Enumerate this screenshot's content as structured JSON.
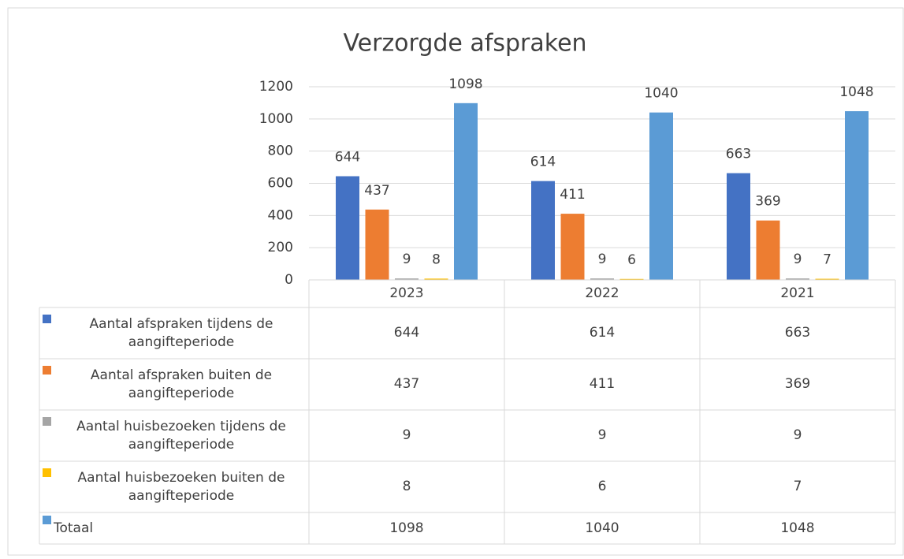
{
  "chart_data": {
    "type": "bar",
    "title": "Verzorgde afspraken",
    "categories": [
      "2023",
      "2022",
      "2021"
    ],
    "series": [
      {
        "name": "Aantal afspraken tijdens de aangifteperiode",
        "color": "#4472c4",
        "values": [
          644,
          614,
          663
        ]
      },
      {
        "name": "Aantal afspraken buiten de aangifteperiode",
        "color": "#ed7d31",
        "values": [
          437,
          411,
          369
        ]
      },
      {
        "name": "Aantal huisbezoeken tijdens de aangifteperiode",
        "color": "#a5a5a5",
        "values": [
          9,
          9,
          9
        ]
      },
      {
        "name": "Aantal huisbezoeken buiten de aangifteperiode",
        "color": "#ffc000",
        "values": [
          8,
          6,
          7
        ]
      },
      {
        "name": "Totaal",
        "color": "#5b9bd5",
        "values": [
          1098,
          1040,
          1048
        ]
      }
    ],
    "ylim": [
      0,
      1200
    ],
    "yticks": [
      0,
      200,
      400,
      600,
      800,
      1000,
      1200
    ],
    "grid": true
  }
}
